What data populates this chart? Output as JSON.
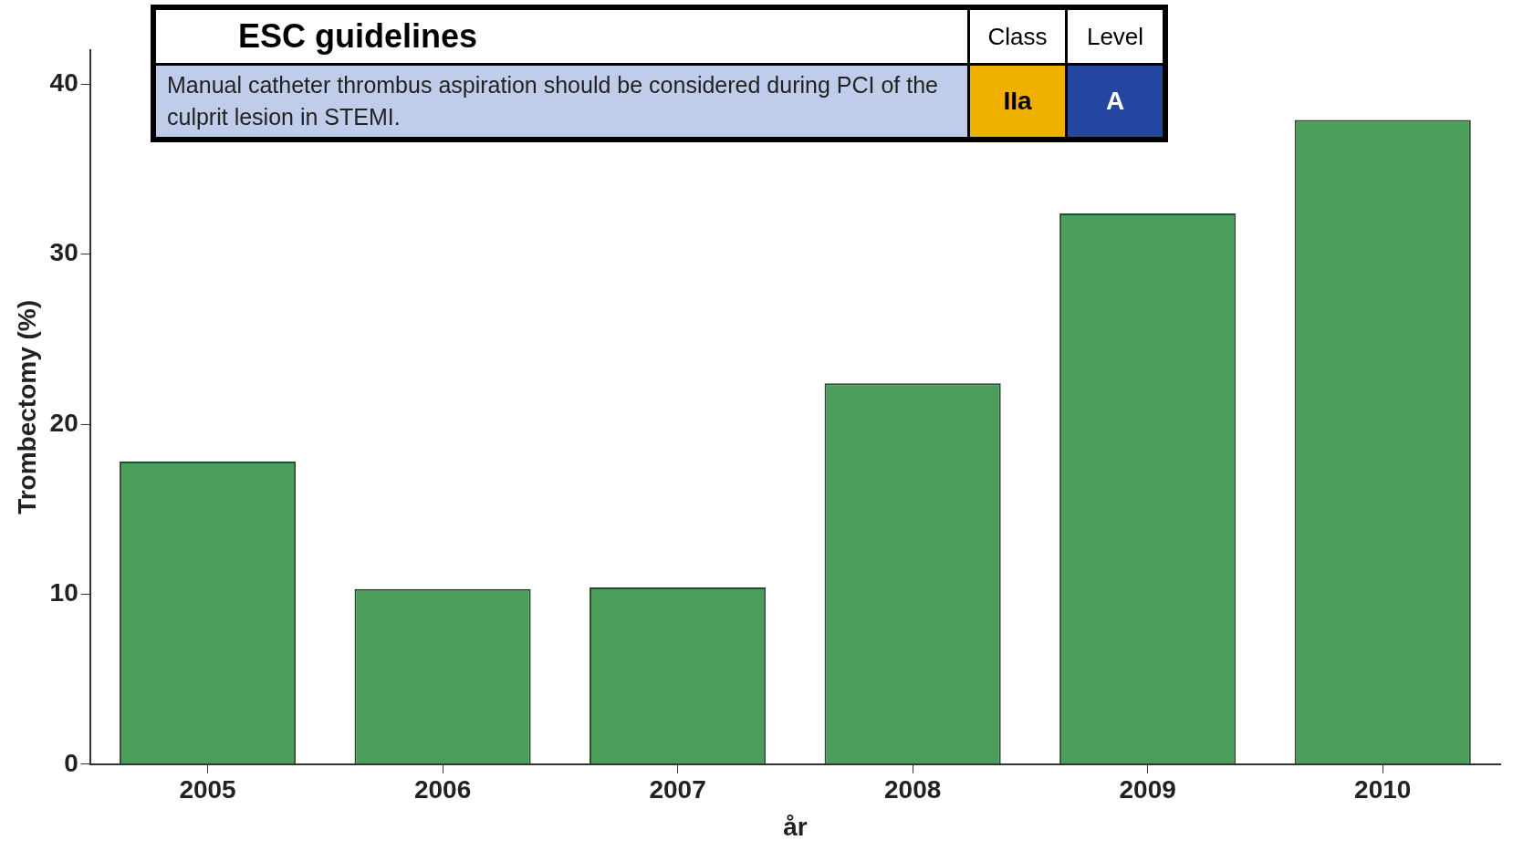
{
  "chart_data": {
    "type": "bar",
    "xlabel": "år",
    "ylabel": "Trombectomy (%)",
    "categories": [
      "2005",
      "2006",
      "2007",
      "2008",
      "2009",
      "2010"
    ],
    "values": [
      17.8,
      10.3,
      10.4,
      22.4,
      32.4,
      37.9
    ],
    "color": "#4a9e5a",
    "ylim": [
      0,
      42
    ],
    "yticks": [
      0,
      10,
      20,
      30,
      40
    ],
    "grid": false,
    "legend": false,
    "annotations": [
      "ESC guidelines",
      "Class",
      "Level",
      "Manual catheter thrombus aspiration should be considered during PCI of the culprit lesion in STEMI.",
      "IIa",
      "A"
    ]
  }
}
